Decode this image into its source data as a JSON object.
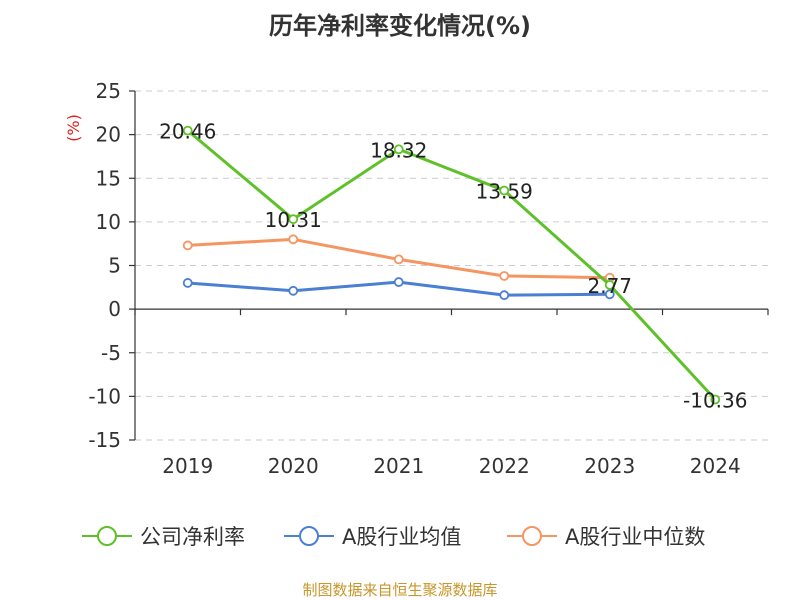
{
  "chart_data": {
    "type": "line",
    "title": "历年净利率变化情况(%)",
    "ylabel": "(%)",
    "xlabel": "",
    "ylim": [
      -15,
      25
    ],
    "yticks": [
      25,
      20,
      15,
      10,
      5,
      0,
      -5,
      -10,
      -15
    ],
    "categories": [
      "2019",
      "2020",
      "2021",
      "2022",
      "2023",
      "2024"
    ],
    "grid": true,
    "legend_position": "bottom",
    "series": [
      {
        "name": "公司净利率",
        "color": "#5ec12a",
        "values": [
          20.46,
          10.31,
          18.32,
          13.59,
          2.77,
          -10.36
        ],
        "labels": [
          "20.46",
          "10.31",
          "18.32",
          "13.59",
          "2.77",
          "-10.36"
        ]
      },
      {
        "name": "A股行业均值",
        "color": "#4a7fd4",
        "values": [
          3.0,
          2.1,
          3.1,
          1.6,
          1.7,
          null
        ]
      },
      {
        "name": "A股行业中位数",
        "color": "#f59562",
        "values": [
          7.3,
          8.0,
          5.7,
          3.8,
          3.6,
          null
        ]
      }
    ]
  },
  "source_text": "制图数据来自恒生聚源数据库"
}
